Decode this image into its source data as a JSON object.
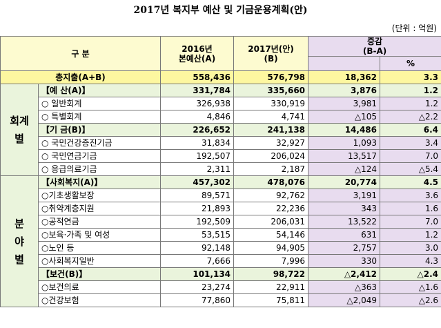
{
  "title": "2017년 복지부 예산 및 기금운용계획(안)",
  "unit": "(단위 : 억원)",
  "header": {
    "category": "구 분",
    "col2016": [
      "2016년",
      "본예산(A)"
    ],
    "col2017": [
      "2017년(안)",
      "(B)"
    ],
    "change": [
      "증감",
      "(B-A)"
    ],
    "percent": "%"
  },
  "total": {
    "label": "총지출(A+B)",
    "cells": [
      "558,436",
      "576,798",
      "18,362",
      "3.3"
    ]
  },
  "groups": [
    {
      "label": [
        "회계",
        "별"
      ],
      "rows": [
        {
          "label": "【예 산(A)】",
          "sub": true,
          "cells": [
            "331,784",
            "335,660",
            "3,876",
            "1.2"
          ]
        },
        {
          "label": "○ 일반회계",
          "cells": [
            "326,938",
            "330,919",
            "3,981",
            "1.2"
          ]
        },
        {
          "label": "○ 특별회계",
          "cells": [
            "4,846",
            "4,741",
            "△105",
            "△2.2"
          ]
        },
        {
          "label": "【기 금(B)】",
          "sub": true,
          "cells": [
            "226,652",
            "241,138",
            "14,486",
            "6.4"
          ]
        },
        {
          "label": "○ 국민건강증진기금",
          "cells": [
            "31,834",
            "32,927",
            "1,093",
            "3.4"
          ]
        },
        {
          "label": "○ 국민연금기금",
          "cells": [
            "192,507",
            "206,024",
            "13,517",
            "7.0"
          ]
        },
        {
          "label": "○ 응급의료기금",
          "cells": [
            "2,311",
            "2,187",
            "△124",
            "△5.4"
          ]
        }
      ]
    },
    {
      "label": [
        "분",
        "야",
        "별"
      ],
      "rows": [
        {
          "label": "【사회복지(A)】",
          "sub": true,
          "cells": [
            "457,302",
            "478,076",
            "20,774",
            "4.5"
          ]
        },
        {
          "label": "○기초생활보장",
          "cells": [
            "89,571",
            "92,762",
            "3,191",
            "3.6"
          ]
        },
        {
          "label": "○취약계층지원",
          "cells": [
            "21,893",
            "22,236",
            "343",
            "1.6"
          ]
        },
        {
          "label": "○공적연금",
          "cells": [
            "192,509",
            "206,031",
            "13,522",
            "7.0"
          ]
        },
        {
          "label": "○보육·가족 및 여성",
          "cells": [
            "53,515",
            "54,146",
            "631",
            "1.2"
          ]
        },
        {
          "label": "○노인 등",
          "cells": [
            "92,148",
            "94,905",
            "2,757",
            "3.0"
          ]
        },
        {
          "label": "○사회복지일반",
          "cells": [
            "7,666",
            "7,996",
            "330",
            "4.3"
          ]
        },
        {
          "label": "【보건(B)】",
          "sub": true,
          "cells": [
            "101,134",
            "98,722",
            "△2,412",
            "△2.4"
          ]
        },
        {
          "label": "○보건의료",
          "cells": [
            "23,274",
            "22,911",
            "△363",
            "△1.6"
          ]
        },
        {
          "label": "○건강보험",
          "cells": [
            "77,860",
            "75,811",
            "△2,049",
            "△2.6"
          ]
        }
      ]
    }
  ]
}
